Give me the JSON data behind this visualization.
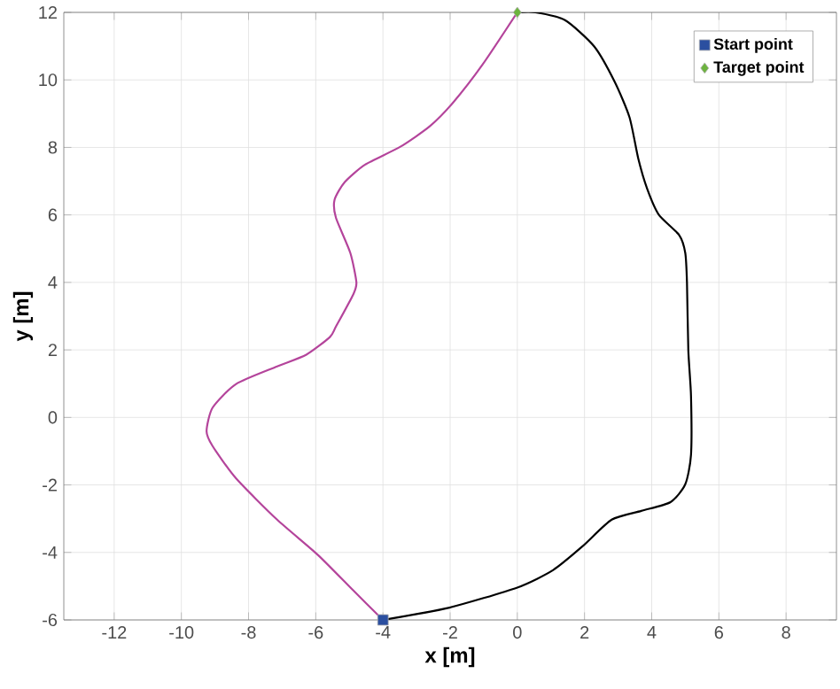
{
  "chart_data": {
    "type": "line",
    "xlabel": "x [m]",
    "ylabel": "y [m]",
    "xlim": [
      -13.5,
      9.5
    ],
    "ylim": [
      -6,
      12
    ],
    "xticks": [
      -12,
      -10,
      -8,
      -6,
      -4,
      -2,
      0,
      2,
      4,
      6,
      8
    ],
    "yticks": [
      -6,
      -4,
      -2,
      0,
      2,
      4,
      6,
      8,
      10,
      12
    ],
    "grid": true,
    "legend": "top right",
    "series": [
      {
        "color": "#b4449b",
        "marker": "none",
        "x": [
          -4,
          -4.88,
          -5.93,
          -7.15,
          -8.37,
          -9.07,
          -9.25,
          -9.07,
          -8.37,
          -7.15,
          -6.28,
          -5.58,
          -5.4,
          -4.88,
          -4.79,
          -4.97,
          -5.4,
          -5.44,
          -5.14,
          -4.53,
          -3.48,
          -2.6,
          -1.91,
          -1.03,
          0
        ],
        "values": [
          -6,
          -5.13,
          -4.08,
          -3.03,
          -1.81,
          -0.85,
          -0.41,
          0.29,
          0.99,
          1.51,
          1.86,
          2.38,
          2.69,
          3.65,
          4.0,
          4.87,
          5.92,
          6.45,
          6.97,
          7.49,
          8.02,
          8.63,
          9.33,
          10.46,
          12
        ]
      },
      {
        "color": "#000000",
        "marker": "none",
        "x": [
          -4,
          -2.08,
          0,
          1.07,
          1.94,
          2.81,
          3.69,
          4.56,
          5.0,
          5.17,
          5.17,
          5.09,
          5.05,
          5.0,
          4.82,
          4.21,
          3.86,
          3.6,
          3.34,
          2.9,
          2.29,
          1.42,
          0.54,
          0
        ],
        "values": [
          -6,
          -5.65,
          -5.04,
          -4.52,
          -3.82,
          -3.03,
          -2.77,
          -2.51,
          -1.98,
          -1.11,
          0.64,
          2.0,
          4.0,
          4.87,
          5.4,
          6.01,
          6.79,
          7.67,
          8.89,
          9.94,
          10.99,
          11.77,
          12,
          12
        ]
      },
      {
        "type": "scatter",
        "name": "Start point",
        "color": "#2b4fa0",
        "marker": "square",
        "x": [
          -4
        ],
        "values": [
          -6
        ]
      },
      {
        "type": "scatter",
        "name": "Target point",
        "color": "#6db33f",
        "marker": "diamond",
        "x": [
          0
        ],
        "values": [
          12
        ]
      }
    ]
  }
}
